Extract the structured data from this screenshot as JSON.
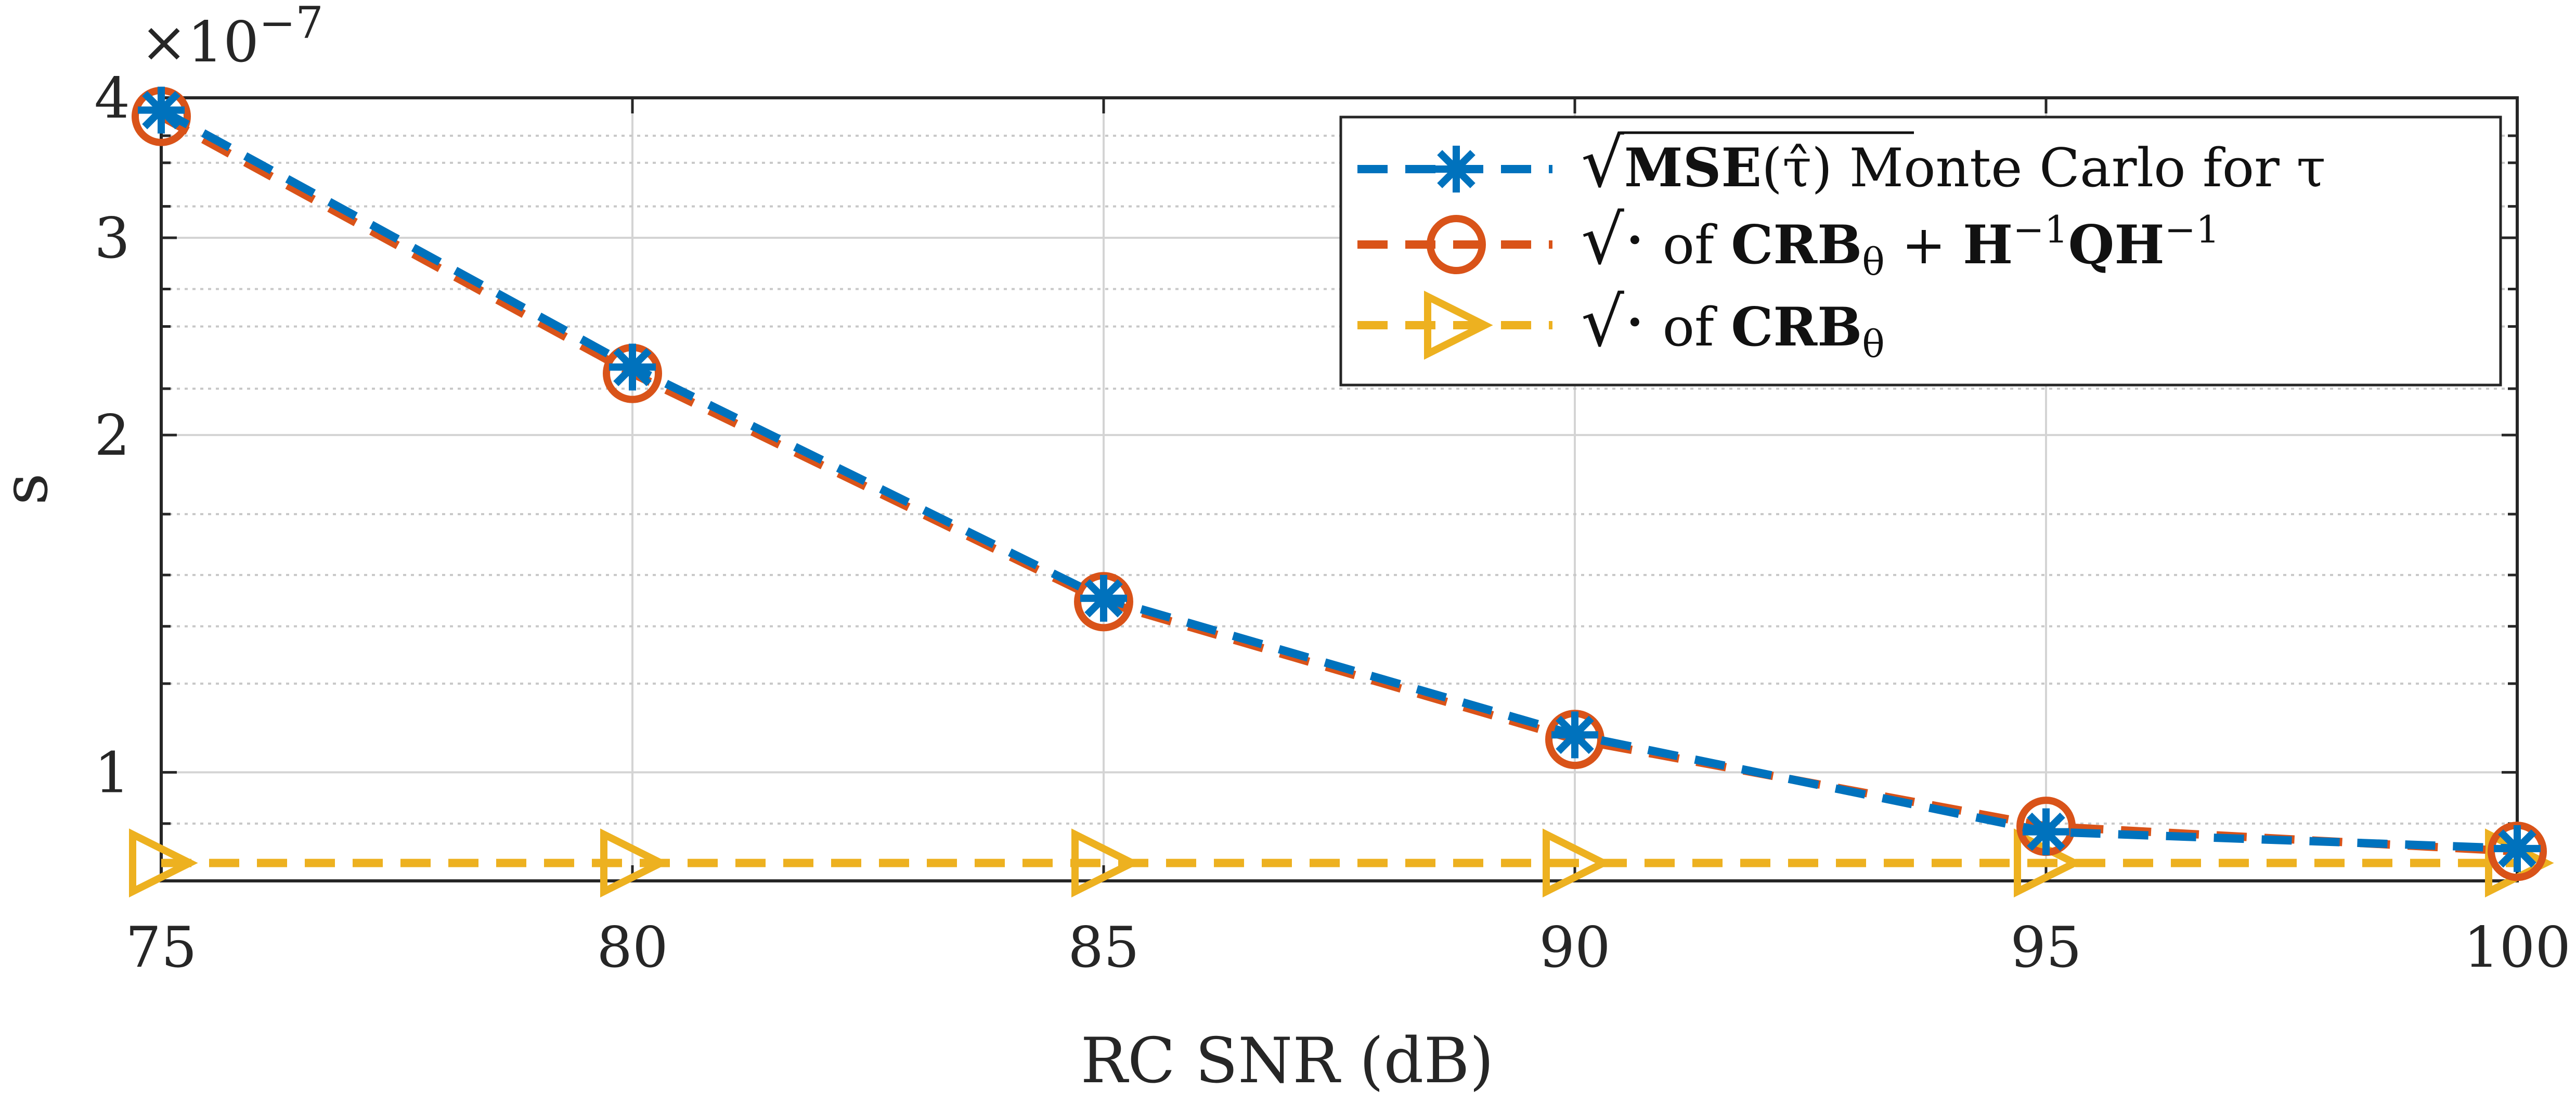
{
  "chart_data": {
    "type": "line",
    "x": [
      75,
      80,
      85,
      90,
      95,
      100
    ],
    "xlim": [
      75,
      100
    ],
    "ylim": [
      8e-08,
      4e-07
    ],
    "yscale": "log",
    "xlabel": "RC SNR (dB)",
    "ylabel": "s",
    "x_tick_labels": [
      "75",
      "80",
      "85",
      "90",
      "95",
      "100"
    ],
    "y_tick_labels": [
      {
        "value": 1e-07,
        "label": "1"
      },
      {
        "value": 2e-07,
        "label": "2"
      },
      {
        "value": 3e-07,
        "label": "3"
      },
      {
        "value": 4e-07,
        "label": "4"
      }
    ],
    "y_exponent_label": {
      "base": "×10",
      "exponent": "−7"
    },
    "grid": true,
    "legend_position": "top-right",
    "series": [
      {
        "name": "sqrt(MSE(tau_hat)) Monte Carlo for tau",
        "legend_parts": {
          "sqrt": "√",
          "bold": "MSE",
          "arg": "(τ̂)",
          "rest": " Monte Carlo for τ"
        },
        "color": "#0072BD",
        "marker": "asterisk",
        "values": [
          3.9e-07,
          2.3e-07,
          1.43e-07,
          1.08e-07,
          8.85e-08,
          8.55e-08
        ]
      },
      {
        "name": "sqrt of CRB_theta + H^-1 Q H^-1",
        "legend_parts": {
          "sqrt": "√·",
          "of": " of ",
          "bold1": "CRB",
          "sub": "θ",
          "plus": " + ",
          "bold2": "H",
          "sup1": "−1",
          "bold3": "QH",
          "sup2": "−1"
        },
        "color": "#D95319",
        "marker": "circle",
        "values": [
          3.85e-07,
          2.27e-07,
          1.42e-07,
          1.07e-07,
          8.95e-08,
          8.5e-08
        ]
      },
      {
        "name": "sqrt of CRB_theta",
        "legend_parts": {
          "sqrt": "√·",
          "of": " of ",
          "bold1": "CRB",
          "sub": "θ"
        },
        "color": "#EDB120",
        "marker": "triangle-right",
        "values": [
          8.3e-08,
          8.3e-08,
          8.3e-08,
          8.3e-08,
          8.3e-08,
          8.3e-08
        ]
      }
    ]
  }
}
